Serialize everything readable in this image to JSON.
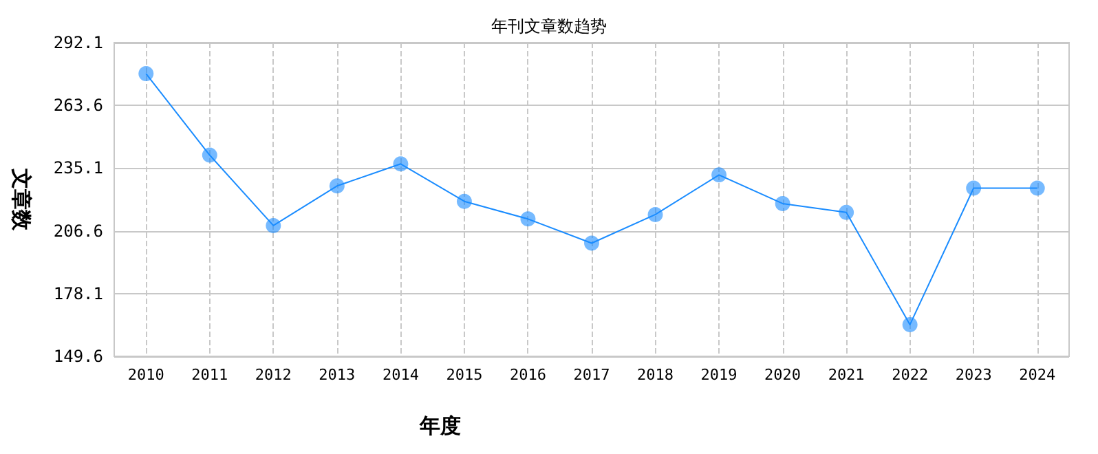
{
  "chart_data": {
    "type": "line",
    "title": "年刊文章数趋势",
    "xlabel": "年度",
    "ylabel": "文章数",
    "categories": [
      "2010",
      "2011",
      "2012",
      "2013",
      "2014",
      "2015",
      "2016",
      "2017",
      "2018",
      "2019",
      "2020",
      "2021",
      "2022",
      "2023",
      "2024"
    ],
    "series": [
      {
        "color": "#1a8cff",
        "values": [
          278,
          241,
          209,
          227,
          237,
          220,
          212,
          201,
          214,
          232,
          219,
          215,
          164,
          226,
          226
        ]
      }
    ],
    "ylim": [
      149.6,
      292.1
    ],
    "yticks": [
      149.6,
      178.1,
      206.6,
      235.1,
      263.6,
      292.1
    ],
    "grid": true,
    "marker": "circle",
    "line_style": "solid"
  }
}
